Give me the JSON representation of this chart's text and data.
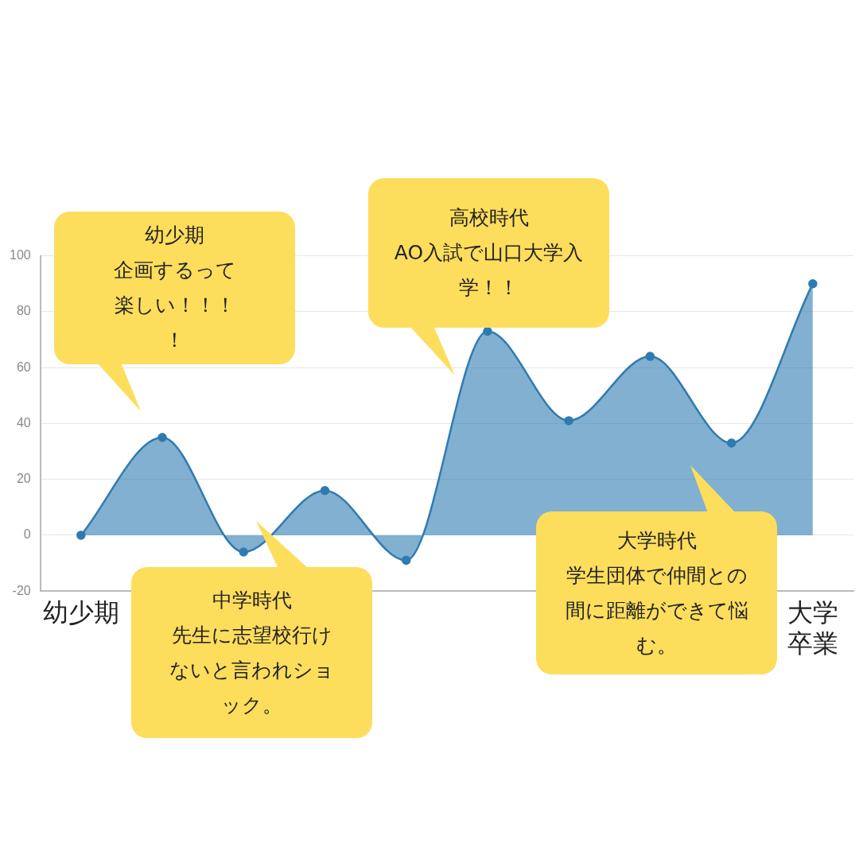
{
  "chart_data": {
    "type": "area",
    "categories": [
      "幼少期",
      null,
      null,
      null,
      null,
      null,
      null,
      null,
      null,
      "大学卒業"
    ],
    "values": [
      0,
      35,
      -6,
      16,
      -9,
      73,
      41,
      64,
      33,
      90
    ],
    "color": "#2f7bb0",
    "ylim": [
      -20,
      100
    ],
    "yticks": [
      -20,
      0,
      20,
      40,
      60,
      80,
      100
    ],
    "grid": "y",
    "marker": "circle",
    "annotations": [
      "幼少期",
      "企画するって楽しい！！！！",
      "高校時代",
      "AO入試で山口大学入学！！",
      "中学時代",
      "先生に志望校行けないと言われショック。",
      "大学時代",
      "学生団体で仲間との間に距離ができて悩む。"
    ]
  }
}
